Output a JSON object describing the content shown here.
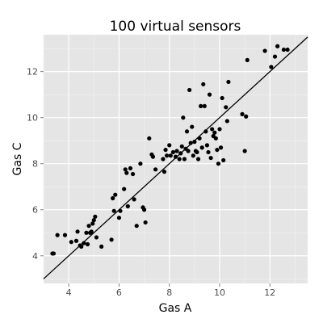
{
  "chart_data": {
    "type": "scatter",
    "title": "100 virtual sensors",
    "xlabel": "Gas A",
    "ylabel": "Gas C",
    "xlim": [
      3.0,
      13.5
    ],
    "ylim": [
      2.8,
      13.6
    ],
    "xticks": [
      4,
      6,
      8,
      10,
      12
    ],
    "yticks": [
      4,
      6,
      8,
      10,
      12
    ],
    "grid": true,
    "background": "#e5e5e5",
    "point_color": "#000000",
    "reference_line": {
      "slope": 1,
      "intercept": 0,
      "color": "#000000"
    },
    "points": [
      [
        3.35,
        4.1
      ],
      [
        3.4,
        4.1
      ],
      [
        3.55,
        4.9
      ],
      [
        3.85,
        4.9
      ],
      [
        4.1,
        4.6
      ],
      [
        4.3,
        4.65
      ],
      [
        4.35,
        5.05
      ],
      [
        4.45,
        4.45
      ],
      [
        4.5,
        4.4
      ],
      [
        4.6,
        4.55
      ],
      [
        4.7,
        5.0
      ],
      [
        4.75,
        4.5
      ],
      [
        4.8,
        5.3
      ],
      [
        4.85,
        5.0
      ],
      [
        4.9,
        5.05
      ],
      [
        4.95,
        5.4
      ],
      [
        5.0,
        5.55
      ],
      [
        5.05,
        5.7
      ],
      [
        5.1,
        4.8
      ],
      [
        5.3,
        4.4
      ],
      [
        5.7,
        4.7
      ],
      [
        5.75,
        6.5
      ],
      [
        5.8,
        5.95
      ],
      [
        5.85,
        6.65
      ],
      [
        6.0,
        5.65
      ],
      [
        6.05,
        5.95
      ],
      [
        6.2,
        6.9
      ],
      [
        6.25,
        7.75
      ],
      [
        6.3,
        7.6
      ],
      [
        6.35,
        6.15
      ],
      [
        6.45,
        7.8
      ],
      [
        6.55,
        7.55
      ],
      [
        6.6,
        6.45
      ],
      [
        6.7,
        5.3
      ],
      [
        6.85,
        8.0
      ],
      [
        6.95,
        6.1
      ],
      [
        7.0,
        6.0
      ],
      [
        7.05,
        5.45
      ],
      [
        7.2,
        9.1
      ],
      [
        7.3,
        8.4
      ],
      [
        7.35,
        8.3
      ],
      [
        7.45,
        7.75
      ],
      [
        7.75,
        8.2
      ],
      [
        7.8,
        7.65
      ],
      [
        7.85,
        8.6
      ],
      [
        7.9,
        8.35
      ],
      [
        8.0,
        8.8
      ],
      [
        8.05,
        8.35
      ],
      [
        8.15,
        8.5
      ],
      [
        8.25,
        8.3
      ],
      [
        8.3,
        8.55
      ],
      [
        8.4,
        8.2
      ],
      [
        8.45,
        8.45
      ],
      [
        8.5,
        8.75
      ],
      [
        8.55,
        10.0
      ],
      [
        8.6,
        8.2
      ],
      [
        8.65,
        8.65
      ],
      [
        8.7,
        9.4
      ],
      [
        8.75,
        8.55
      ],
      [
        8.8,
        11.2
      ],
      [
        8.85,
        8.9
      ],
      [
        8.9,
        9.6
      ],
      [
        8.95,
        8.35
      ],
      [
        9.0,
        8.95
      ],
      [
        9.05,
        8.55
      ],
      [
        9.1,
        8.5
      ],
      [
        9.15,
        8.2
      ],
      [
        9.2,
        9.1
      ],
      [
        9.25,
        10.5
      ],
      [
        9.3,
        8.7
      ],
      [
        9.35,
        11.45
      ],
      [
        9.4,
        10.5
      ],
      [
        9.45,
        9.4
      ],
      [
        9.5,
        8.8
      ],
      [
        9.55,
        8.5
      ],
      [
        9.6,
        11.0
      ],
      [
        9.65,
        8.25
      ],
      [
        9.7,
        9.5
      ],
      [
        9.75,
        9.2
      ],
      [
        9.8,
        9.35
      ],
      [
        9.85,
        9.1
      ],
      [
        9.9,
        8.6
      ],
      [
        9.95,
        8.0
      ],
      [
        10.0,
        9.5
      ],
      [
        10.05,
        8.7
      ],
      [
        10.1,
        10.85
      ],
      [
        10.15,
        8.15
      ],
      [
        10.25,
        10.45
      ],
      [
        10.3,
        9.85
      ],
      [
        10.35,
        11.55
      ],
      [
        10.9,
        10.15
      ],
      [
        11.0,
        8.55
      ],
      [
        11.05,
        10.05
      ],
      [
        11.1,
        12.5
      ],
      [
        11.8,
        12.9
      ],
      [
        12.05,
        12.2
      ],
      [
        12.2,
        12.65
      ],
      [
        12.3,
        13.1
      ],
      [
        12.55,
        12.95
      ],
      [
        12.7,
        12.95
      ]
    ]
  }
}
